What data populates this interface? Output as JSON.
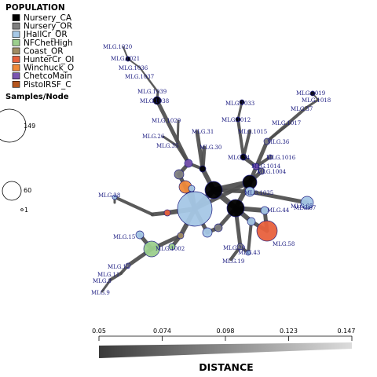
{
  "legend": {
    "title": "POPULATION",
    "items": [
      {
        "label": "Nursery_CA",
        "color": "#000000"
      },
      {
        "label": "Nursery_OR",
        "color": "#7f7f7f"
      },
      {
        "label": "JHallCr_OR",
        "color": "#a6c8e6"
      },
      {
        "label": "NFChetHigh",
        "color": "#9ccf8e"
      },
      {
        "label": "Coast_OR",
        "color": "#a08c64"
      },
      {
        "label": "HunterCr_OI",
        "color": "#e8613e"
      },
      {
        "label": "Winchuck_O",
        "color": "#f08a3a"
      },
      {
        "label": "ChetcoMain",
        "color": "#7a55b0"
      },
      {
        "label": "PistolRSF_C",
        "color": "#b4551e"
      }
    ]
  },
  "size_legend": {
    "title": "Samples/Node",
    "values": [
      "149",
      "60",
      "1"
    ]
  },
  "distance": {
    "title": "DISTANCE",
    "ticks": [
      "0.05",
      "0.074",
      "0.098",
      "0.123",
      "0.147"
    ]
  },
  "nodes": [
    "MLG.1020",
    "MLG.1021",
    "MLG.1036",
    "MLG.1037",
    "MLG.1039",
    "MLG.1038",
    "MLG.1033",
    "MLG.1019",
    "MLG.1018",
    "MLG.37",
    "MLG.1029",
    "MLG.1012",
    "MLG.1017",
    "MLG.31",
    "MLG.1015",
    "MLG.26",
    "MLG.35",
    "MLG.36",
    "MLG.30",
    "MLG.34",
    "MLG.1016",
    "MLG.1014",
    "MLG.1004",
    "MLG.1035",
    "MLG.28",
    "MLG.44",
    "MLG.65",
    "MLG.67",
    "MLG.58",
    "MLG.43",
    "MLG.20",
    "MLG.19",
    "MLG.15",
    "MLG.1002",
    "MLG.12",
    "MLG.11",
    "MLG.8",
    "MLG.9"
  ]
}
